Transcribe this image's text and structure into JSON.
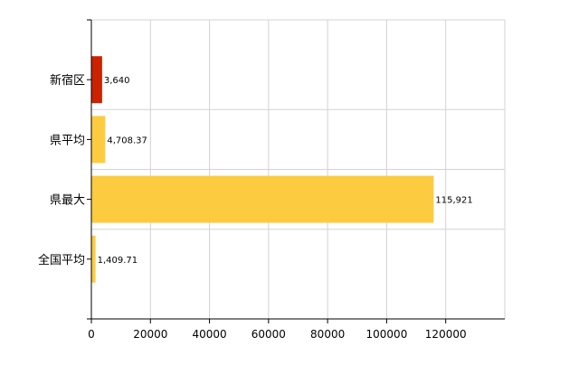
{
  "chart_data": {
    "type": "bar",
    "orientation": "horizontal",
    "categories": [
      "新宿区",
      "県平均",
      "県最大",
      "全国平均"
    ],
    "values": [
      3640,
      4708.37,
      115921,
      1409.71
    ],
    "data_labels": [
      "3,640",
      "4,708.37",
      "115,921",
      "1,409.71"
    ],
    "bar_colors": [
      "#cc2200",
      "#fccb3f",
      "#fccb3f",
      "#fccb3f"
    ],
    "xlim": [
      0,
      140000
    ],
    "xticks": [
      0,
      20000,
      40000,
      60000,
      80000,
      100000,
      120000
    ],
    "xtick_labels": [
      "0",
      "20000",
      "40000",
      "60000",
      "80000",
      "100000",
      "120000"
    ],
    "title": "",
    "xlabel": "",
    "ylabel": "",
    "grid": true,
    "legend": "none"
  }
}
